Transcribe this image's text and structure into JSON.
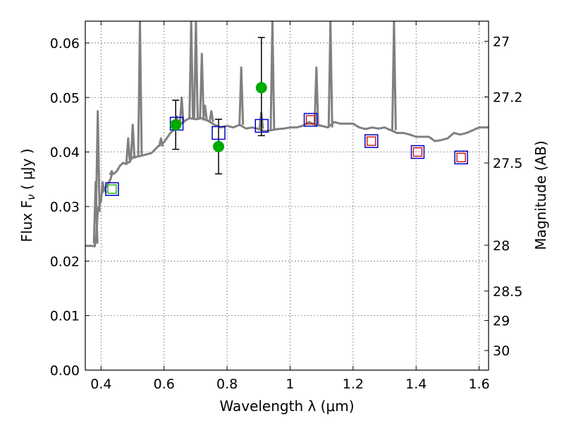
{
  "chart_data": {
    "type": "scatter",
    "title": "",
    "xlabel": "Wavelength  λ (μm)",
    "ylabel": "Flux  F",
    "ylabel_sub": "ν",
    "ylabel_unit": "  ( μJy )",
    "y2label": "Magnitude (AB)",
    "xlim": [
      0.35,
      1.63
    ],
    "ylim": [
      0.0,
      0.064
    ],
    "grid": true,
    "xticks": [
      0.4,
      0.6,
      0.8,
      1.0,
      1.2,
      1.4,
      1.6
    ],
    "xtick_labels": [
      "0.4",
      "0.6",
      "0.8",
      "1",
      "1.2",
      "1.4",
      "1.6"
    ],
    "yticks": [
      0.0,
      0.01,
      0.02,
      0.03,
      0.04,
      0.05,
      0.06
    ],
    "ytick_labels": [
      "0.00",
      "0.01",
      "0.02",
      "0.03",
      "0.04",
      "0.05",
      "0.06"
    ],
    "y2ticks": [
      {
        "label": "27",
        "flux": 0.0603
      },
      {
        "label": "27.2",
        "flux": 0.0501
      },
      {
        "label": "27.5",
        "flux": 0.038
      },
      {
        "label": "28",
        "flux": 0.0229
      },
      {
        "label": "28.5",
        "flux": 0.0145
      },
      {
        "label": "29",
        "flux": 0.0091
      },
      {
        "label": "30",
        "flux": 0.0036
      }
    ],
    "colors": {
      "spectrum": "#808080",
      "observed": "#00aa00",
      "model_blue": "#0000cc",
      "model_red": "#cc0000",
      "errorbar": "#000000"
    },
    "spectrum": {
      "x": [
        0.35,
        0.37,
        0.38,
        0.385,
        0.39,
        0.4,
        0.405,
        0.41,
        0.42,
        0.43,
        0.435,
        0.44,
        0.45,
        0.46,
        0.47,
        0.48,
        0.49,
        0.5,
        0.52,
        0.54,
        0.56,
        0.58,
        0.6,
        0.62,
        0.64,
        0.66,
        0.68,
        0.7,
        0.72,
        0.74,
        0.76,
        0.78,
        0.8,
        0.82,
        0.84,
        0.86,
        0.88,
        0.9,
        0.92,
        0.94,
        0.96,
        0.98,
        1.0,
        1.02,
        1.04,
        1.06,
        1.08,
        1.1,
        1.12,
        1.14,
        1.16,
        1.18,
        1.2,
        1.22,
        1.24,
        1.26,
        1.28,
        1.3,
        1.32,
        1.34,
        1.36,
        1.38,
        1.4,
        1.42,
        1.44,
        1.46,
        1.48,
        1.5,
        1.52,
        1.54,
        1.56,
        1.58,
        1.6,
        1.63
      ],
      "y": [
        0.0228,
        0.0228,
        0.0227,
        0.0245,
        0.0295,
        0.031,
        0.0345,
        0.033,
        0.034,
        0.035,
        0.0362,
        0.036,
        0.0365,
        0.0375,
        0.038,
        0.0378,
        0.0382,
        0.039,
        0.0392,
        0.0395,
        0.0398,
        0.041,
        0.0418,
        0.0435,
        0.0445,
        0.0455,
        0.0462,
        0.046,
        0.0462,
        0.0457,
        0.045,
        0.0445,
        0.0448,
        0.0445,
        0.045,
        0.0443,
        0.0445,
        0.0442,
        0.0438,
        0.044,
        0.0442,
        0.0443,
        0.0445,
        0.0445,
        0.0448,
        0.0455,
        0.045,
        0.0448,
        0.0445,
        0.0455,
        0.0452,
        0.0452,
        0.0452,
        0.0445,
        0.0442,
        0.0445,
        0.0443,
        0.0445,
        0.044,
        0.0435,
        0.0435,
        0.0432,
        0.0428,
        0.0428,
        0.0428,
        0.042,
        0.0422,
        0.0425,
        0.0435,
        0.0432,
        0.0435,
        0.044,
        0.0445,
        0.0445
      ]
    },
    "emission_lines": [
      {
        "x": 0.383,
        "peak": 0.0345,
        "base": 0.0232
      },
      {
        "x": 0.3895,
        "peak": 0.0475,
        "base": 0.029
      },
      {
        "x": 0.4105,
        "peak": 0.0335,
        "base": 0.0325
      },
      {
        "x": 0.434,
        "peak": 0.0365,
        "base": 0.0358
      },
      {
        "x": 0.486,
        "peak": 0.0425,
        "base": 0.038
      },
      {
        "x": 0.5007,
        "peak": 0.045,
        "base": 0.0388
      },
      {
        "x": 0.5235,
        "peak": 0.064,
        "base": 0.0392
      },
      {
        "x": 0.59,
        "peak": 0.0425,
        "base": 0.041
      },
      {
        "x": 0.64,
        "peak": 0.0465,
        "base": 0.0445
      },
      {
        "x": 0.656,
        "peak": 0.05,
        "base": 0.0452
      },
      {
        "x": 0.686,
        "peak": 0.064,
        "base": 0.046
      },
      {
        "x": 0.701,
        "peak": 0.064,
        "base": 0.046
      },
      {
        "x": 0.72,
        "peak": 0.058,
        "base": 0.0462
      },
      {
        "x": 0.73,
        "peak": 0.0485,
        "base": 0.0458
      },
      {
        "x": 0.75,
        "peak": 0.0475,
        "base": 0.0455
      },
      {
        "x": 0.845,
        "peak": 0.0555,
        "base": 0.045
      },
      {
        "x": 0.9085,
        "peak": 0.0472,
        "base": 0.0443
      },
      {
        "x": 0.944,
        "peak": 0.064,
        "base": 0.0439
      },
      {
        "x": 1.0835,
        "peak": 0.0555,
        "base": 0.045
      },
      {
        "x": 1.128,
        "peak": 0.064,
        "base": 0.0445
      },
      {
        "x": 1.33,
        "peak": 0.064,
        "base": 0.044
      }
    ],
    "observed": [
      {
        "x": 0.637,
        "y": 0.045,
        "yerr_lo": 0.0405,
        "yerr_hi": 0.0495
      },
      {
        "x": 0.773,
        "y": 0.041,
        "yerr_lo": 0.036,
        "yerr_hi": 0.046
      },
      {
        "x": 0.909,
        "y": 0.0518,
        "yerr_lo": 0.043,
        "yerr_hi": 0.061
      }
    ],
    "observed_small": [
      {
        "x": 0.435,
        "y": 0.0332
      }
    ],
    "model_blue": [
      {
        "x": 0.435,
        "y": 0.0332
      },
      {
        "x": 0.64,
        "y": 0.0452
      },
      {
        "x": 0.773,
        "y": 0.0435
      },
      {
        "x": 0.91,
        "y": 0.0448
      },
      {
        "x": 1.065,
        "y": 0.0459
      },
      {
        "x": 1.258,
        "y": 0.042
      },
      {
        "x": 1.405,
        "y": 0.04
      },
      {
        "x": 1.543,
        "y": 0.039
      }
    ],
    "model_red": [
      {
        "x": 1.065,
        "y": 0.0459
      },
      {
        "x": 1.258,
        "y": 0.042
      },
      {
        "x": 1.405,
        "y": 0.04
      },
      {
        "x": 1.543,
        "y": 0.039
      }
    ]
  }
}
